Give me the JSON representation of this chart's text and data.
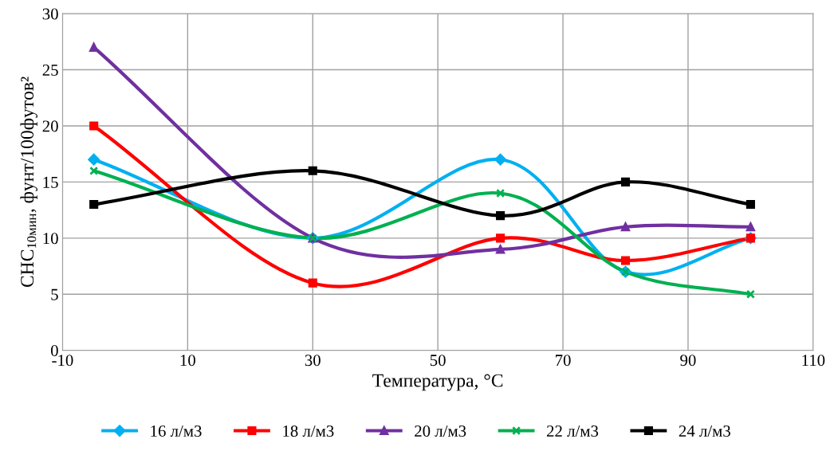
{
  "chart_data": {
    "type": "line",
    "xlabel": "Температура, °C",
    "ylabel": "СНС$_{10мин}$, фунт/100футов²",
    "x": [
      -5,
      30,
      60,
      80,
      100
    ],
    "series": [
      {
        "name": "16 л/м3",
        "color": "#00b0f0",
        "marker": "diamond",
        "values": [
          17,
          10,
          17,
          7,
          10
        ]
      },
      {
        "name": "18 л/м3",
        "color": "#ff0000",
        "marker": "square",
        "values": [
          20,
          6,
          10,
          8,
          10
        ]
      },
      {
        "name": "20 л/м3",
        "color": "#7030a0",
        "marker": "triangle",
        "values": [
          27,
          10,
          9,
          11,
          11
        ]
      },
      {
        "name": "22 л/м3",
        "color": "#00b050",
        "marker": "cross",
        "values": [
          16,
          10,
          14,
          7,
          5
        ]
      },
      {
        "name": "24 л/м3",
        "color": "#000000",
        "marker": "square",
        "values": [
          13,
          16,
          12,
          15,
          13
        ]
      }
    ],
    "xlim": [
      -10,
      110
    ],
    "xticks": [
      -10,
      10,
      30,
      50,
      70,
      90,
      110
    ],
    "ylim": [
      0,
      30
    ],
    "yticks": [
      0,
      5,
      10,
      15,
      20,
      25,
      30
    ],
    "grid": true,
    "legend": "bottom",
    "line_style": "solid"
  }
}
